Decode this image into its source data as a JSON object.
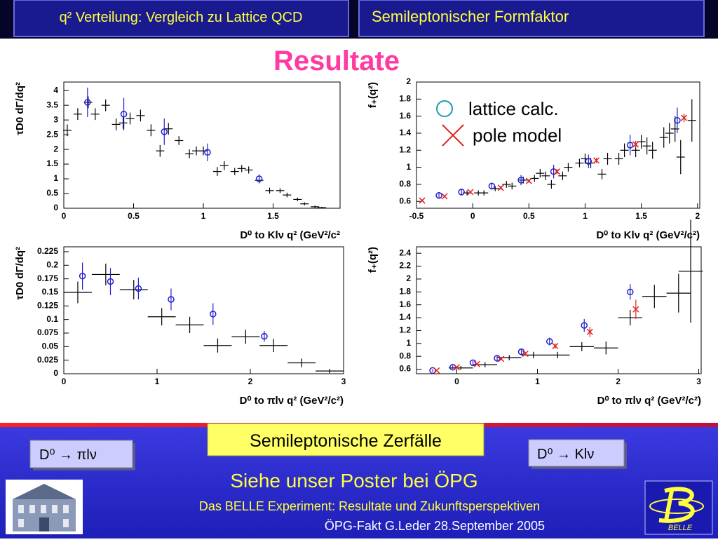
{
  "header": {
    "left": "q² Verteilung:  Vergleich zu Lattice QCD",
    "right": "Semileptonischer  Formfaktor"
  },
  "title": "Resultate",
  "chart_data": [
    {
      "type": "scatter",
      "x_label": "D⁰ to Klν    q² (GeV²/c²",
      "y_label": "τD0 dΓ/dq²",
      "xlim": [
        0,
        1.98
      ],
      "ylim": [
        0,
        4.29
      ],
      "xticks": [
        0,
        0.5,
        1,
        1.5
      ],
      "yticks": [
        0,
        0.5,
        1,
        1.5,
        2,
        2.5,
        3,
        3.5,
        4
      ],
      "series": [
        {
          "color": "#000000",
          "marker": "cross",
          "x": [
            0.025,
            0.1,
            0.175,
            0.225,
            0.3,
            0.375,
            0.425,
            0.475,
            0.55,
            0.625,
            0.69,
            0.75,
            0.825,
            0.9,
            0.95,
            1.0,
            1.1,
            1.15,
            1.225,
            1.275,
            1.325,
            1.4,
            1.475,
            1.55,
            1.6,
            1.675,
            1.725,
            1.8,
            1.85
          ],
          "values": [
            2.65,
            3.2,
            3.6,
            3.2,
            3.5,
            2.85,
            2.9,
            3.05,
            3.15,
            2.65,
            1.95,
            2.7,
            2.3,
            1.85,
            1.95,
            1.95,
            1.25,
            1.45,
            1.25,
            1.35,
            1.3,
            0.95,
            0.6,
            0.6,
            0.45,
            0.3,
            0.15,
            0.05,
            0.02
          ],
          "errors": [
            0.2,
            0.2,
            0.2,
            0.2,
            0.2,
            0.2,
            0.2,
            0.2,
            0.2,
            0.2,
            0.2,
            0.2,
            0.15,
            0.15,
            0.15,
            0.15,
            0.15,
            0.15,
            0.12,
            0.12,
            0.12,
            0.1,
            0.1,
            0.08,
            0.08,
            0.06,
            0.05,
            0.04,
            0.03
          ]
        },
        {
          "color": "#1f1fd0",
          "marker": "circle",
          "x": [
            0.17,
            0.43,
            0.72,
            1.03,
            1.4
          ],
          "values": [
            3.6,
            3.2,
            2.6,
            1.9,
            1.0
          ],
          "errors": [
            0.5,
            0.55,
            0.45,
            0.3,
            0.15
          ]
        }
      ]
    },
    {
      "type": "scatter",
      "x_label": "D⁰ to Klν    q² (GeV²/c²)",
      "y_label": "f₊(q²)",
      "legend": "upper left",
      "xlim": [
        -0.5,
        2.02
      ],
      "ylim": [
        0.52,
        2.0
      ],
      "xticks": [
        -0.5,
        0,
        0.5,
        1,
        1.5,
        2
      ],
      "yticks": [
        0.6,
        0.8,
        1,
        1.2,
        1.4,
        1.6,
        1.8,
        2
      ],
      "series": [
        {
          "color": "#000000",
          "marker": "cross",
          "x": [
            -0.05,
            0.05,
            0.1,
            0.2,
            0.3,
            0.35,
            0.45,
            0.55,
            0.6,
            0.65,
            0.7,
            0.8,
            0.85,
            0.95,
            1.0,
            1.05,
            1.15,
            1.2,
            1.3,
            1.35,
            1.45,
            1.5,
            1.55,
            1.6,
            1.7,
            1.75,
            1.8,
            1.85,
            1.95
          ],
          "values": [
            0.7,
            0.7,
            0.7,
            0.75,
            0.8,
            0.78,
            0.85,
            0.87,
            0.93,
            0.9,
            0.8,
            0.9,
            1.0,
            1.05,
            1.1,
            1.05,
            0.92,
            1.1,
            1.1,
            1.2,
            1.2,
            1.3,
            1.25,
            1.2,
            1.35,
            1.4,
            1.45,
            1.12,
            1.55
          ],
          "errors": [
            0.03,
            0.03,
            0.03,
            0.03,
            0.04,
            0.04,
            0.04,
            0.04,
            0.05,
            0.05,
            0.05,
            0.05,
            0.05,
            0.05,
            0.06,
            0.06,
            0.06,
            0.07,
            0.07,
            0.08,
            0.08,
            0.08,
            0.1,
            0.1,
            0.12,
            0.12,
            0.15,
            0.2,
            0.25
          ]
        },
        {
          "name": "lattice calc.",
          "color": "#1f1fd0",
          "marker": "circle",
          "x": [
            -0.3,
            -0.1,
            0.17,
            0.43,
            0.72,
            1.03,
            1.4,
            1.82
          ],
          "values": [
            0.67,
            0.71,
            0.78,
            0.85,
            0.95,
            1.07,
            1.26,
            1.55
          ],
          "errors": [
            0.04,
            0.04,
            0.04,
            0.06,
            0.08,
            0.08,
            0.12,
            0.15
          ]
        },
        {
          "name": "pole model",
          "color": "#e02020",
          "marker": "x",
          "x": [
            -0.45,
            -0.25,
            -0.02,
            0.25,
            0.5,
            0.75,
            1.1,
            1.45,
            1.88
          ],
          "values": [
            0.61,
            0.66,
            0.71,
            0.76,
            0.84,
            0.95,
            1.08,
            1.27,
            1.58
          ],
          "errors": [
            0.01,
            0.01,
            0.01,
            0.02,
            0.02,
            0.03,
            0.03,
            0.04,
            0.05
          ]
        }
      ]
    },
    {
      "type": "scatter",
      "x_label": "D⁰ to πlν    q² (GeV²/c²)",
      "y_label": "τD0 dΓ/dq²",
      "xlim": [
        0,
        3
      ],
      "ylim": [
        0,
        0.234
      ],
      "xticks": [
        0,
        1,
        2,
        3
      ],
      "yticks": [
        0,
        0.025,
        0.05,
        0.075,
        0.1,
        0.125,
        0.15,
        0.175,
        0.2,
        0.225
      ],
      "series": [
        {
          "color": "#000000",
          "marker": "cross",
          "x": [
            0.15,
            0.45,
            0.75,
            1.05,
            1.35,
            1.65,
            1.95,
            2.25,
            2.55,
            2.85
          ],
          "values": [
            0.15,
            0.183,
            0.155,
            0.105,
            0.09,
            0.052,
            0.068,
            0.052,
            0.02,
            0.005
          ],
          "errors": [
            0.02,
            0.02,
            0.018,
            0.016,
            0.015,
            0.013,
            0.013,
            0.012,
            0.008,
            0.004
          ],
          "xerrors": [
            0.15,
            0.15,
            0.15,
            0.15,
            0.15,
            0.15,
            0.15,
            0.15,
            0.15,
            0.15
          ]
        },
        {
          "color": "#1f1fd0",
          "marker": "circle",
          "x": [
            0.2,
            0.5,
            0.8,
            1.15,
            1.6,
            2.15
          ],
          "values": [
            0.18,
            0.17,
            0.157,
            0.137,
            0.11,
            0.069
          ],
          "errors": [
            0.025,
            0.025,
            0.02,
            0.02,
            0.02,
            0.01
          ]
        }
      ]
    },
    {
      "type": "scatter",
      "x_label": "D⁰ to πlν    q² (GeV²/c²)",
      "y_label": "f₊(q²)",
      "xlim": [
        -0.5,
        3.03
      ],
      "ylim": [
        0.53,
        2.5
      ],
      "xticks": [
        0,
        1,
        2,
        3
      ],
      "yticks": [
        0.6,
        0.8,
        1,
        1.2,
        1.4,
        1.6,
        1.8,
        2,
        2.2,
        2.4
      ],
      "series": [
        {
          "color": "#000000",
          "marker": "cross",
          "x": [
            0.05,
            0.35,
            0.65,
            0.95,
            1.25,
            1.55,
            1.85,
            2.15,
            2.45,
            2.75,
            2.9
          ],
          "values": [
            0.62,
            0.67,
            0.78,
            0.82,
            0.82,
            0.95,
            0.93,
            1.4,
            1.73,
            1.78,
            2.12
          ],
          "errors": [
            0.03,
            0.04,
            0.04,
            0.05,
            0.05,
            0.07,
            0.1,
            0.12,
            0.18,
            0.3,
            0.8
          ],
          "xerrors": [
            0.15,
            0.15,
            0.15,
            0.15,
            0.15,
            0.15,
            0.15,
            0.15,
            0.15,
            0.15,
            0.15
          ]
        },
        {
          "color": "#1f1fd0",
          "marker": "circle",
          "x": [
            -0.3,
            -0.05,
            0.2,
            0.5,
            0.8,
            1.15,
            1.58,
            2.15
          ],
          "values": [
            0.58,
            0.63,
            0.7,
            0.77,
            0.87,
            1.03,
            1.28,
            1.8
          ],
          "errors": [
            0.02,
            0.03,
            0.03,
            0.04,
            0.04,
            0.06,
            0.1,
            0.12
          ]
        },
        {
          "color": "#e02020",
          "marker": "x",
          "x": [
            -0.25,
            0.0,
            0.25,
            0.55,
            0.85,
            1.22,
            1.65,
            2.22
          ],
          "values": [
            0.58,
            0.63,
            0.68,
            0.76,
            0.84,
            0.96,
            1.18,
            1.53
          ],
          "errors": [
            0.01,
            0.01,
            0.02,
            0.02,
            0.03,
            0.04,
            0.08,
            0.15
          ]
        }
      ]
    }
  ],
  "footer": {
    "label": "Semileptonische Zerfälle",
    "left_decay": "D⁰ → πlν",
    "right_decay": "D⁰ → Klν",
    "poster": "Siehe unser Poster bei ÖPG",
    "subtitle": "Das BELLE Experiment: Resultate und Zukunftsperspektiven",
    "credit": "ÖPG-Fakt  G.Leder  28.September 2005",
    "logo": "BELLE"
  }
}
